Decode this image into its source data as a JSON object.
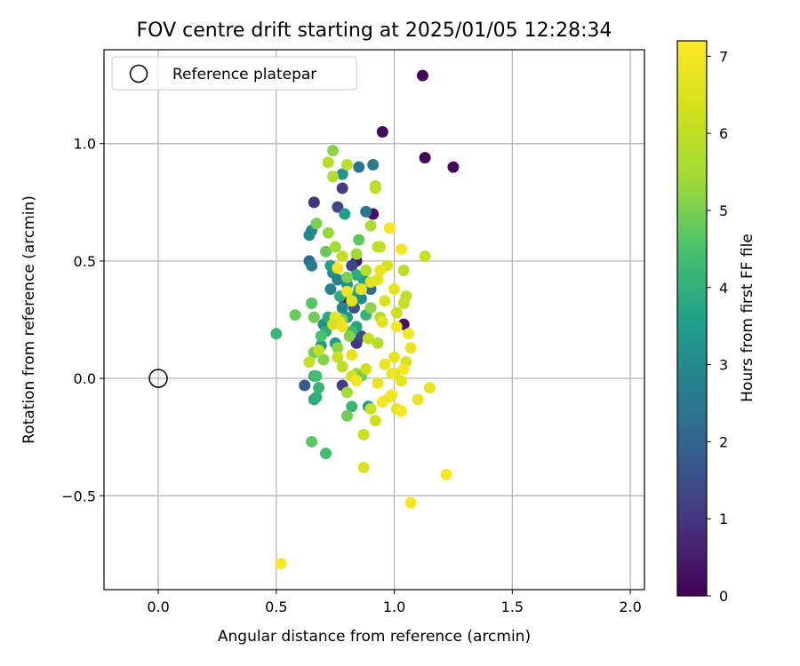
{
  "chart_data": {
    "type": "scatter",
    "title": "FOV centre drift starting at 2025/01/05 12:28:34",
    "xlabel": "Angular distance from reference (arcmin)",
    "ylabel": "Rotation from reference (arcmin)",
    "xlim": [
      -0.23,
      2.06
    ],
    "ylim": [
      -0.9,
      1.4
    ],
    "xticks": [
      0.0,
      0.5,
      1.0,
      1.5,
      2.0
    ],
    "xtick_labels": [
      "0.0",
      "0.5",
      "1.0",
      "1.5",
      "2.0"
    ],
    "yticks": [
      -0.5,
      0.0,
      0.5,
      1.0
    ],
    "ytick_labels": [
      "−0.5",
      "0.0",
      "0.5",
      "1.0"
    ],
    "grid": true,
    "legend": {
      "placement": "top-left",
      "entries": [
        "Reference platepar"
      ]
    },
    "reference_point": {
      "x": 0.0,
      "y": 0.0,
      "label": "Reference platepar"
    },
    "colorbar": {
      "label": "Hours from first FF file",
      "min": 0,
      "max": 7.2,
      "ticks": [
        0,
        1,
        2,
        3,
        4,
        5,
        6,
        7
      ],
      "tick_labels": [
        "0",
        "1",
        "2",
        "3",
        "4",
        "5",
        "6",
        "7"
      ],
      "colormap": "viridis"
    },
    "points": [
      {
        "x": 1.12,
        "y": 1.29,
        "h": 0.1
      },
      {
        "x": 0.95,
        "y": 1.05,
        "h": 0.2
      },
      {
        "x": 1.13,
        "y": 0.94,
        "h": 0.1
      },
      {
        "x": 1.25,
        "y": 0.9,
        "h": 0.1
      },
      {
        "x": 0.91,
        "y": 0.7,
        "h": 0.3
      },
      {
        "x": 1.04,
        "y": 0.23,
        "h": 0.3
      },
      {
        "x": 0.84,
        "y": 0.5,
        "h": 0.5
      },
      {
        "x": 0.79,
        "y": 0.33,
        "h": 0.5
      },
      {
        "x": 0.66,
        "y": 0.75,
        "h": 1.0
      },
      {
        "x": 0.78,
        "y": 0.81,
        "h": 1.1
      },
      {
        "x": 0.76,
        "y": 0.73,
        "h": 1.3
      },
      {
        "x": 0.62,
        "y": -0.03,
        "h": 1.8
      },
      {
        "x": 0.78,
        "y": -0.03,
        "h": 1.2
      },
      {
        "x": 0.84,
        "y": 0.15,
        "h": 1.0
      },
      {
        "x": 0.86,
        "y": 0.18,
        "h": 1.5
      },
      {
        "x": 0.83,
        "y": 0.3,
        "h": 1.6
      },
      {
        "x": 0.82,
        "y": 0.48,
        "h": 1.3
      },
      {
        "x": 0.64,
        "y": 0.5,
        "h": 2.3
      },
      {
        "x": 0.65,
        "y": 0.48,
        "h": 2.6
      },
      {
        "x": 0.64,
        "y": 0.61,
        "h": 3.0
      },
      {
        "x": 0.65,
        "y": 0.63,
        "h": 2.9
      },
      {
        "x": 0.85,
        "y": 0.9,
        "h": 2.4
      },
      {
        "x": 0.91,
        "y": 0.91,
        "h": 2.6
      },
      {
        "x": 0.78,
        "y": 0.87,
        "h": 3.2
      },
      {
        "x": 0.88,
        "y": 0.71,
        "h": 2.5
      },
      {
        "x": 0.79,
        "y": 0.7,
        "h": 3.5
      },
      {
        "x": 0.73,
        "y": 0.38,
        "h": 2.8
      },
      {
        "x": 0.74,
        "y": 0.45,
        "h": 3.0
      },
      {
        "x": 0.76,
        "y": 0.42,
        "h": 2.7
      },
      {
        "x": 0.8,
        "y": 0.4,
        "h": 3.1
      },
      {
        "x": 0.82,
        "y": 0.35,
        "h": 3.3
      },
      {
        "x": 0.78,
        "y": 0.3,
        "h": 2.9
      },
      {
        "x": 0.8,
        "y": 0.26,
        "h": 3.4
      },
      {
        "x": 0.86,
        "y": 0.34,
        "h": 3.0
      },
      {
        "x": 0.9,
        "y": 0.38,
        "h": 2.2
      },
      {
        "x": 0.87,
        "y": 0.42,
        "h": 3.6
      },
      {
        "x": 0.7,
        "y": 0.23,
        "h": 3.2
      },
      {
        "x": 0.72,
        "y": 0.26,
        "h": 3.8
      },
      {
        "x": 0.75,
        "y": 0.15,
        "h": 3.5
      },
      {
        "x": 0.69,
        "y": 0.14,
        "h": 3.3
      },
      {
        "x": 0.71,
        "y": 0.2,
        "h": 4.0
      },
      {
        "x": 0.84,
        "y": 0.22,
        "h": 3.7
      },
      {
        "x": 0.88,
        "y": 0.27,
        "h": 4.1
      },
      {
        "x": 0.82,
        "y": 0.2,
        "h": 4.3
      },
      {
        "x": 0.77,
        "y": 0.35,
        "h": 3.9
      },
      {
        "x": 0.73,
        "y": 0.48,
        "h": 3.6
      },
      {
        "x": 0.84,
        "y": 0.44,
        "h": 3.9
      },
      {
        "x": 0.85,
        "y": 0.38,
        "h": 4.2
      },
      {
        "x": 0.89,
        "y": -0.12,
        "h": 3.4
      },
      {
        "x": 0.82,
        "y": -0.12,
        "h": 4.2
      },
      {
        "x": 0.66,
        "y": -0.09,
        "h": 3.8
      },
      {
        "x": 0.67,
        "y": -0.08,
        "h": 4.0
      },
      {
        "x": 0.68,
        "y": -0.04,
        "h": 4.1
      },
      {
        "x": 0.66,
        "y": 0.01,
        "h": 4.0
      },
      {
        "x": 0.67,
        "y": 0.01,
        "h": 4.4
      },
      {
        "x": 0.5,
        "y": 0.19,
        "h": 4.2
      },
      {
        "x": 0.58,
        "y": 0.27,
        "h": 4.8
      },
      {
        "x": 0.65,
        "y": 0.32,
        "h": 4.6
      },
      {
        "x": 0.66,
        "y": 0.26,
        "h": 4.9
      },
      {
        "x": 0.69,
        "y": 0.18,
        "h": 4.5
      },
      {
        "x": 0.66,
        "y": 0.11,
        "h": 4.9
      },
      {
        "x": 0.7,
        "y": 0.08,
        "h": 5.1
      },
      {
        "x": 0.65,
        "y": -0.27,
        "h": 4.7
      },
      {
        "x": 0.71,
        "y": -0.32,
        "h": 4.4
      },
      {
        "x": 0.8,
        "y": -0.16,
        "h": 4.9
      },
      {
        "x": 0.74,
        "y": 0.97,
        "h": 5.2
      },
      {
        "x": 0.67,
        "y": 0.66,
        "h": 5.0
      },
      {
        "x": 0.72,
        "y": 0.62,
        "h": 5.3
      },
      {
        "x": 0.71,
        "y": 0.54,
        "h": 4.8
      },
      {
        "x": 0.85,
        "y": 0.59,
        "h": 4.7
      },
      {
        "x": 0.84,
        "y": 0.53,
        "h": 5.4
      },
      {
        "x": 0.75,
        "y": 0.56,
        "h": 5.5
      },
      {
        "x": 0.9,
        "y": 0.65,
        "h": 5.6
      },
      {
        "x": 0.78,
        "y": 0.25,
        "h": 5.0
      },
      {
        "x": 0.81,
        "y": 0.18,
        "h": 5.1
      },
      {
        "x": 0.9,
        "y": 0.3,
        "h": 5.2
      },
      {
        "x": 0.84,
        "y": 0.02,
        "h": 5.3
      },
      {
        "x": 0.86,
        "y": 0.01,
        "h": 4.9
      },
      {
        "x": 0.8,
        "y": -0.06,
        "h": 5.5
      },
      {
        "x": 0.76,
        "y": 0.13,
        "h": 5.2
      },
      {
        "x": 0.8,
        "y": 0.43,
        "h": 5.0
      },
      {
        "x": 0.74,
        "y": 0.86,
        "h": 5.7
      },
      {
        "x": 0.72,
        "y": 0.92,
        "h": 5.8
      },
      {
        "x": 0.8,
        "y": 0.91,
        "h": 5.9
      },
      {
        "x": 0.92,
        "y": 0.82,
        "h": 5.7
      },
      {
        "x": 0.92,
        "y": 0.81,
        "h": 6.0
      },
      {
        "x": 0.78,
        "y": 0.52,
        "h": 6.0
      },
      {
        "x": 0.94,
        "y": 0.56,
        "h": 6.1
      },
      {
        "x": 0.93,
        "y": 0.56,
        "h": 6.0
      },
      {
        "x": 0.88,
        "y": 0.46,
        "h": 5.8
      },
      {
        "x": 1.04,
        "y": 0.46,
        "h": 5.9
      },
      {
        "x": 1.13,
        "y": 0.52,
        "h": 6.2
      },
      {
        "x": 1.05,
        "y": 0.35,
        "h": 6.0
      },
      {
        "x": 1.04,
        "y": 0.32,
        "h": 6.1
      },
      {
        "x": 1.01,
        "y": 0.28,
        "h": 6.2
      },
      {
        "x": 0.94,
        "y": 0.26,
        "h": 5.9
      },
      {
        "x": 0.93,
        "y": 0.15,
        "h": 5.8
      },
      {
        "x": 0.89,
        "y": 0.17,
        "h": 6.1
      },
      {
        "x": 0.76,
        "y": 0.09,
        "h": 6.2
      },
      {
        "x": 0.78,
        "y": 0.05,
        "h": 5.9
      },
      {
        "x": 0.64,
        "y": 0.07,
        "h": 6.1
      },
      {
        "x": 0.68,
        "y": 0.12,
        "h": 6.0
      },
      {
        "x": 0.88,
        "y": 0.04,
        "h": 6.3
      },
      {
        "x": 0.87,
        "y": -0.24,
        "h": 6.2
      },
      {
        "x": 0.92,
        "y": -0.18,
        "h": 6.3
      },
      {
        "x": 0.9,
        "y": -0.13,
        "h": 6.2
      },
      {
        "x": 0.82,
        "y": 0.01,
        "h": 6.4
      },
      {
        "x": 1.0,
        "y": 0.02,
        "h": 6.3
      },
      {
        "x": 1.05,
        "y": 0.07,
        "h": 6.4
      },
      {
        "x": 0.97,
        "y": 0.48,
        "h": 6.4
      },
      {
        "x": 0.96,
        "y": 0.33,
        "h": 6.5
      },
      {
        "x": 0.9,
        "y": 0.41,
        "h": 6.6
      },
      {
        "x": 0.93,
        "y": 0.42,
        "h": 6.7
      },
      {
        "x": 0.86,
        "y": 0.38,
        "h": 6.8
      },
      {
        "x": 0.8,
        "y": 0.37,
        "h": 6.9
      },
      {
        "x": 0.82,
        "y": 0.33,
        "h": 6.6
      },
      {
        "x": 0.75,
        "y": 0.26,
        "h": 6.8
      },
      {
        "x": 0.77,
        "y": 0.24,
        "h": 6.7
      },
      {
        "x": 0.74,
        "y": 0.23,
        "h": 6.5
      },
      {
        "x": 0.78,
        "y": 0.22,
        "h": 6.9
      },
      {
        "x": 0.82,
        "y": 0.1,
        "h": 6.8
      },
      {
        "x": 0.84,
        "y": -0.01,
        "h": 7.0
      },
      {
        "x": 0.98,
        "y": 0.64,
        "h": 7.1
      },
      {
        "x": 1.03,
        "y": 0.55,
        "h": 7.0
      },
      {
        "x": 0.94,
        "y": 0.46,
        "h": 6.9
      },
      {
        "x": 1.0,
        "y": 0.38,
        "h": 6.8
      },
      {
        "x": 0.95,
        "y": 0.24,
        "h": 6.7
      },
      {
        "x": 1.01,
        "y": 0.22,
        "h": 7.1
      },
      {
        "x": 1.06,
        "y": 0.19,
        "h": 7.0
      },
      {
        "x": 1.07,
        "y": 0.13,
        "h": 6.9
      },
      {
        "x": 1.0,
        "y": 0.09,
        "h": 6.8
      },
      {
        "x": 0.96,
        "y": 0.06,
        "h": 6.9
      },
      {
        "x": 1.04,
        "y": 0.04,
        "h": 7.0
      },
      {
        "x": 0.99,
        "y": 0.02,
        "h": 6.9
      },
      {
        "x": 1.03,
        "y": -0.01,
        "h": 6.7
      },
      {
        "x": 0.93,
        "y": -0.02,
        "h": 6.8
      },
      {
        "x": 0.99,
        "y": -0.07,
        "h": 7.1
      },
      {
        "x": 0.98,
        "y": -0.08,
        "h": 6.9
      },
      {
        "x": 0.95,
        "y": -0.1,
        "h": 7.0
      },
      {
        "x": 1.01,
        "y": -0.13,
        "h": 6.6
      },
      {
        "x": 1.03,
        "y": -0.14,
        "h": 7.1
      },
      {
        "x": 1.1,
        "y": -0.09,
        "h": 6.9
      },
      {
        "x": 1.15,
        "y": -0.04,
        "h": 6.8
      },
      {
        "x": 0.87,
        "y": -0.38,
        "h": 6.6
      },
      {
        "x": 1.22,
        "y": -0.41,
        "h": 7.1
      },
      {
        "x": 1.07,
        "y": -0.53,
        "h": 7.0
      },
      {
        "x": 0.52,
        "y": -0.79,
        "h": 7.2
      },
      {
        "x": 0.76,
        "y": 0.47,
        "h": 7.1
      }
    ]
  }
}
